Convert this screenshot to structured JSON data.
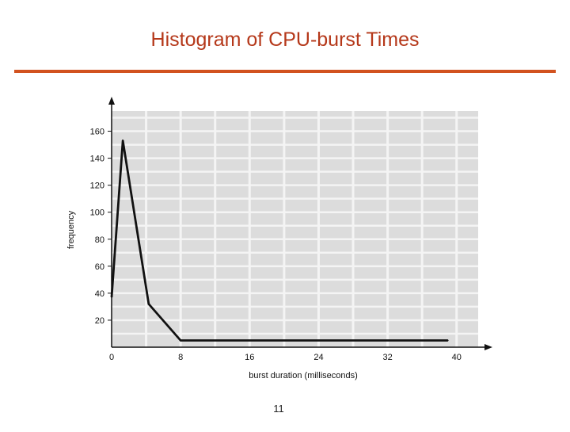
{
  "slide": {
    "title": "Histogram of CPU-burst Times",
    "page_number": "11"
  },
  "colors": {
    "title": "#b5381a",
    "rule": "#d2521f",
    "plot_bg": "#dcdcdc",
    "grid": "#f4f4f4",
    "line": "#111111"
  },
  "chart_data": {
    "type": "line",
    "title": "Histogram of CPU-burst Times",
    "xlabel": "burst duration (milliseconds)",
    "ylabel": "frequency",
    "xlim": [
      0,
      42.5
    ],
    "ylim": [
      0,
      175
    ],
    "x_ticks": [
      0,
      8,
      16,
      24,
      32,
      40
    ],
    "y_ticks": [
      20,
      40,
      60,
      80,
      100,
      120,
      140,
      160
    ],
    "grid": true,
    "legend": "none",
    "series": [
      {
        "x": [
          0,
          1.3,
          4.3,
          8,
          39
        ],
        "y": [
          37,
          153,
          32,
          5,
          5
        ]
      }
    ]
  }
}
